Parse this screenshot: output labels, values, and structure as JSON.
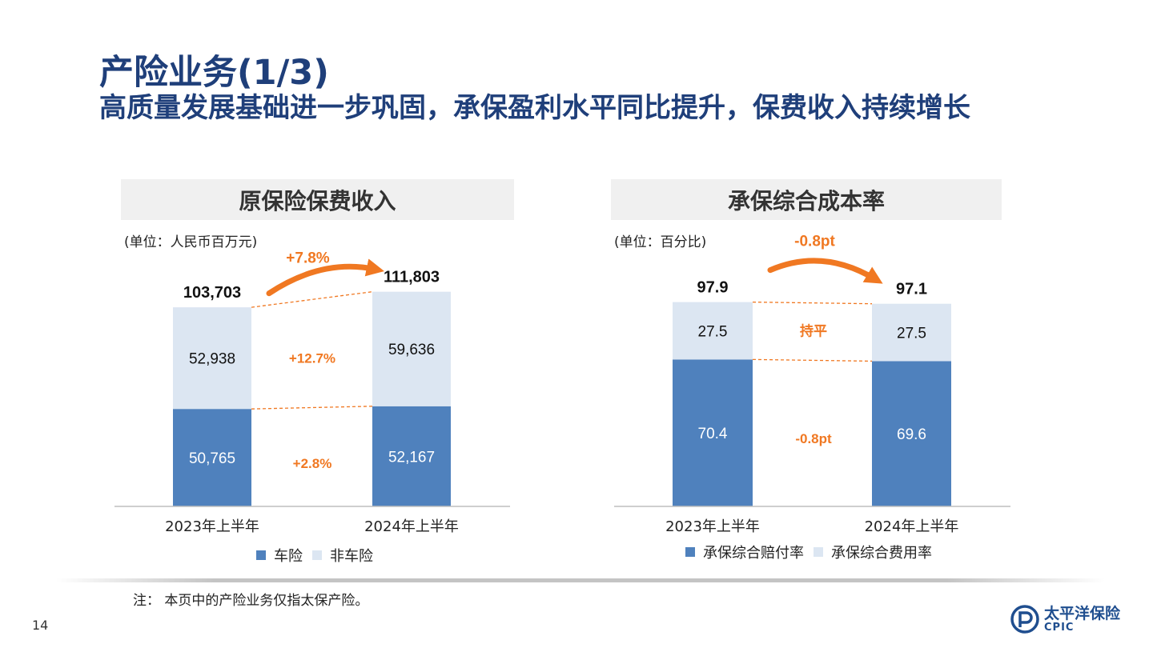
{
  "page": {
    "title": "产险业务(1/3)",
    "subtitle": "高质量发展基础进一步巩固，承保盈利水平同比提升，保费收入持续增长",
    "note": "注：  本页中的产险业务仅指太保产险。",
    "page_number": "14",
    "logo": {
      "name_cn": "太平洋保险",
      "name_en": "CPIC"
    }
  },
  "chart_data": [
    {
      "type": "bar",
      "stacked": true,
      "title": "原保险保费收入",
      "unit_label": "(单位：人民币百万元)",
      "categories": [
        "2023年上半年",
        "2024年上半年"
      ],
      "series": [
        {
          "name": "车险",
          "values": [
            50765,
            52167
          ],
          "labels": [
            "50,765",
            "52,167"
          ],
          "color": "#4f81bd"
        },
        {
          "name": "非车险",
          "values": [
            52938,
            59636
          ],
          "labels": [
            "52,938",
            "59,636"
          ],
          "color": "#dce6f2"
        }
      ],
      "totals": [
        "103,703",
        "111,803"
      ],
      "total_values": [
        103703,
        111803
      ],
      "change_labels": {
        "total": "+7.8%",
        "series": [
          "+2.8%",
          "+12.7%"
        ]
      },
      "ylim": [
        0,
        125000
      ],
      "legend": "bottom",
      "grid": false
    },
    {
      "type": "bar",
      "stacked": true,
      "title": "承保综合成本率",
      "unit_label": "(单位：百分比)",
      "categories": [
        "2023年上半年",
        "2024年上半年"
      ],
      "series": [
        {
          "name": "承保综合赔付率",
          "values": [
            70.4,
            69.6
          ],
          "labels": [
            "70.4",
            "69.6"
          ],
          "color": "#4f81bd"
        },
        {
          "name": "承保综合费用率",
          "values": [
            27.5,
            27.5
          ],
          "labels": [
            "27.5",
            "27.5"
          ],
          "color": "#dce6f2"
        }
      ],
      "totals": [
        "97.9",
        "97.1"
      ],
      "total_values": [
        97.9,
        97.1
      ],
      "change_labels": {
        "total": "-0.8pt",
        "series": [
          "-0.8pt",
          "持平"
        ]
      },
      "ylim": [
        0,
        115
      ],
      "legend": "bottom",
      "grid": false
    }
  ]
}
